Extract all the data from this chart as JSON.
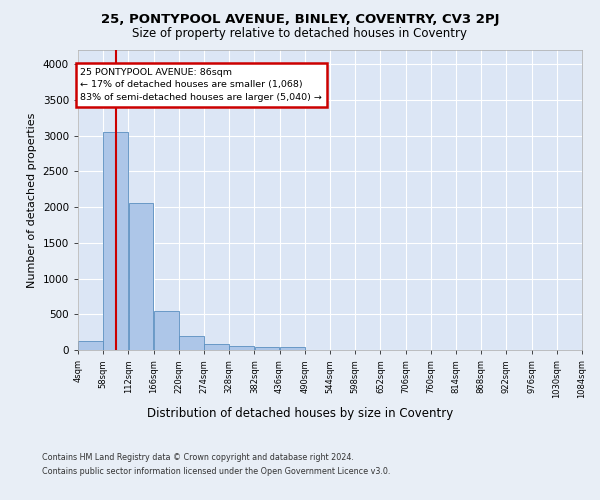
{
  "title1": "25, PONTYPOOL AVENUE, BINLEY, COVENTRY, CV3 2PJ",
  "title2": "Size of property relative to detached houses in Coventry",
  "xlabel": "Distribution of detached houses by size in Coventry",
  "ylabel": "Number of detached properties",
  "footer1": "Contains HM Land Registry data © Crown copyright and database right 2024.",
  "footer2": "Contains public sector information licensed under the Open Government Licence v3.0.",
  "annotation_line1": "25 PONTYPOOL AVENUE: 86sqm",
  "annotation_line2": "← 17% of detached houses are smaller (1,068)",
  "annotation_line3": "83% of semi-detached houses are larger (5,040) →",
  "property_size": 86,
  "bin_edges": [
    4,
    58,
    112,
    166,
    220,
    274,
    328,
    382,
    436,
    490,
    544,
    598,
    652,
    706,
    760,
    814,
    868,
    922,
    976,
    1030,
    1084
  ],
  "bar_heights": [
    130,
    3050,
    2060,
    550,
    200,
    80,
    55,
    40,
    40,
    0,
    0,
    0,
    0,
    0,
    0,
    0,
    0,
    0,
    0,
    0
  ],
  "bar_color": "#adc6e8",
  "bar_edgecolor": "#5a8fc0",
  "redline_x": 86,
  "ylim": [
    0,
    4200
  ],
  "yticks": [
    0,
    500,
    1000,
    1500,
    2000,
    2500,
    3000,
    3500,
    4000
  ],
  "bg_color": "#e8eef6",
  "plot_bg_color": "#dce6f5",
  "grid_color": "#ffffff",
  "annotation_box_color": "#ffffff",
  "annotation_border_color": "#cc0000",
  "redline_color": "#cc0000"
}
